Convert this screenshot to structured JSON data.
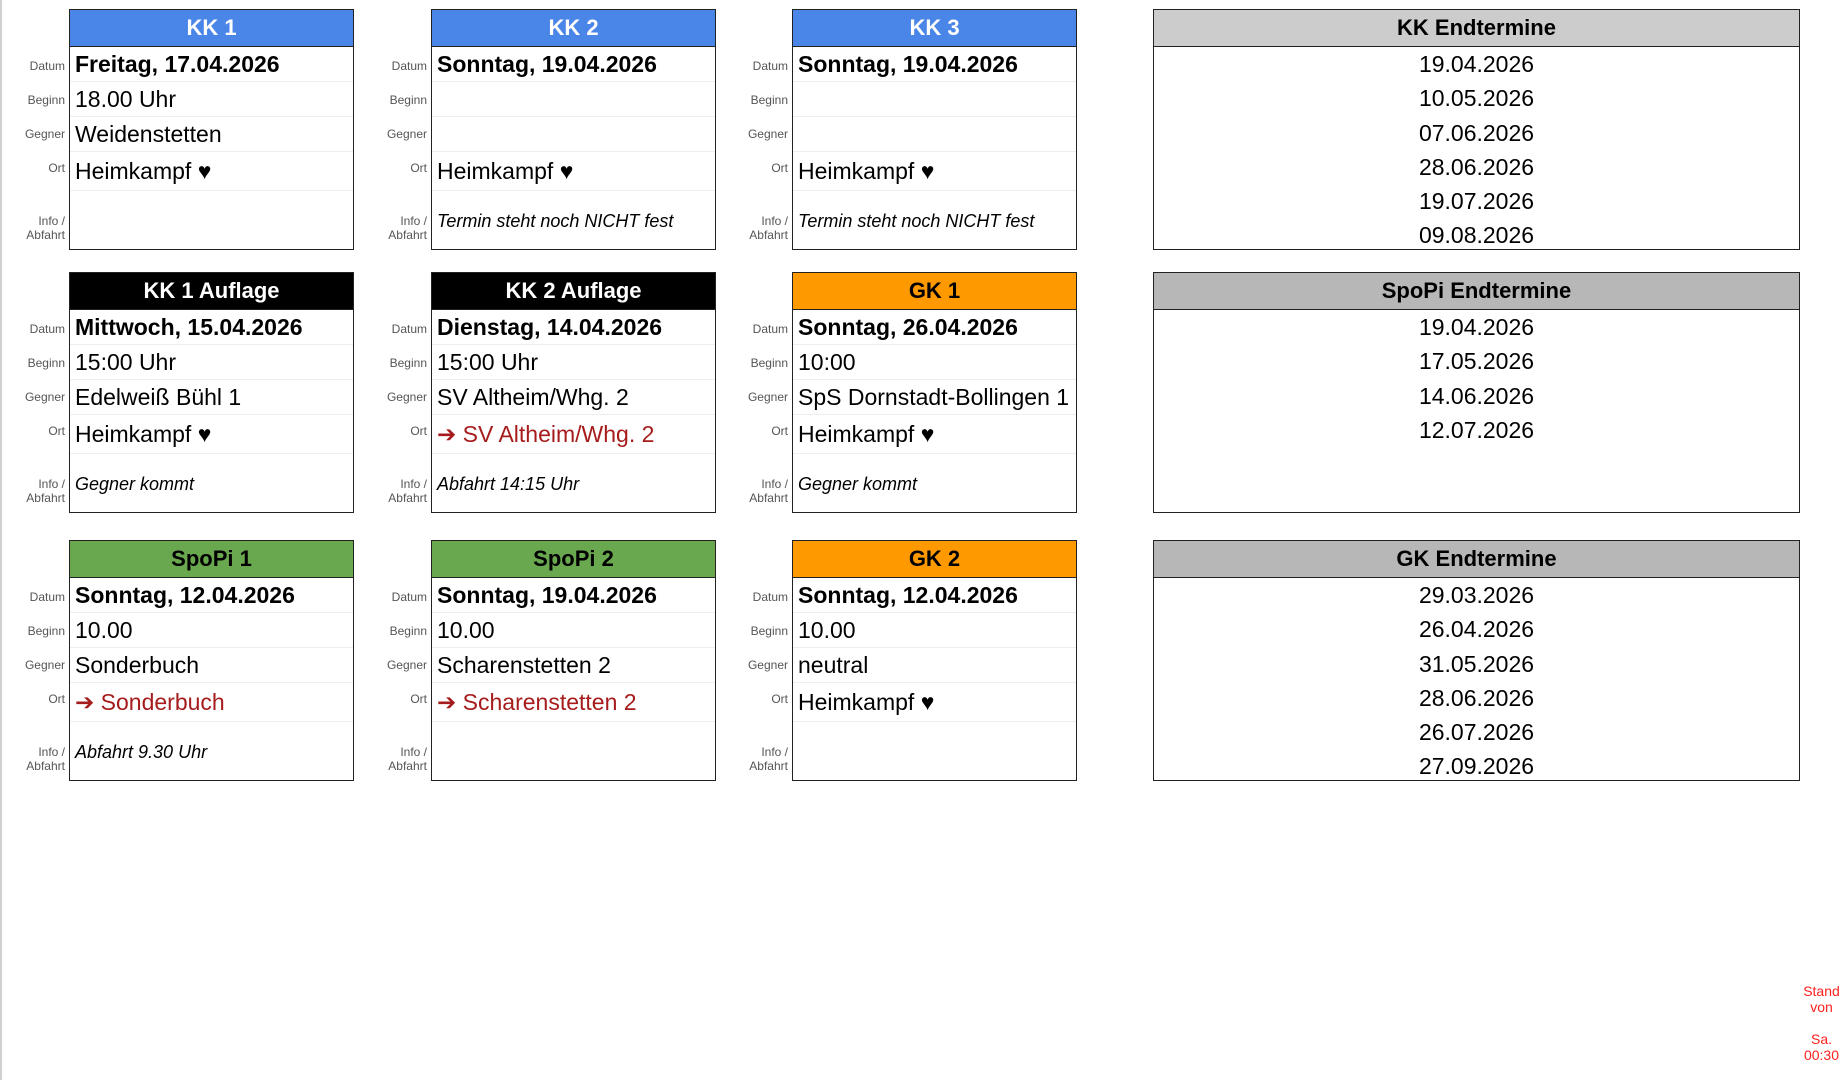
{
  "row_labels": {
    "datum": "Datum",
    "beginn": "Beginn",
    "gegner": "Gegner",
    "ort": "Ort",
    "info_line1": "Info /",
    "info_line2": "Abfahrt"
  },
  "colors": {
    "kk": "#4a86e8",
    "auflage": "#000000",
    "gk": "#ff9900",
    "spopi": "#6aa84f",
    "end_kk": "#cccccc",
    "end_other": "#b7b7b7",
    "away": "#a61c1c",
    "stand": "#ff2020"
  },
  "cards": [
    {
      "title": "KK 1",
      "color": "#4a86e8",
      "title_color": "#ffffff",
      "datum": "Freitag, 17.04.2026",
      "beginn": "18.00 Uhr",
      "gegner": "Weidenstetten",
      "ort": "Heimkampf ♥",
      "ort_away": false,
      "info": ""
    },
    {
      "title": "KK 2",
      "color": "#4a86e8",
      "title_color": "#ffffff",
      "datum": "Sonntag, 19.04.2026",
      "beginn": "",
      "gegner": "",
      "ort": "Heimkampf ♥",
      "ort_away": false,
      "info": "Termin steht noch NICHT fest"
    },
    {
      "title": "KK 3",
      "color": "#4a86e8",
      "title_color": "#ffffff",
      "datum": "Sonntag, 19.04.2026",
      "beginn": "",
      "gegner": "",
      "ort": "Heimkampf ♥",
      "ort_away": false,
      "info": "Termin steht noch NICHT fest"
    },
    {
      "title": "KK 1 Auflage",
      "color": "#000000",
      "title_color": "#ffffff",
      "datum": "Mittwoch, 15.04.2026",
      "beginn": "15:00 Uhr",
      "gegner": "Edelweiß Bühl 1",
      "ort": "Heimkampf ♥",
      "ort_away": false,
      "info": "Gegner kommt"
    },
    {
      "title": "KK 2 Auflage",
      "color": "#000000",
      "title_color": "#ffffff",
      "datum": "Dienstag, 14.04.2026",
      "beginn": "15:00 Uhr",
      "gegner": "SV Altheim/Whg. 2",
      "ort": "➔ SV Altheim/Whg. 2",
      "ort_away": true,
      "info": "Abfahrt 14:15 Uhr"
    },
    {
      "title": "GK 1",
      "color": "#ff9900",
      "title_color": "#000000",
      "datum": "Sonntag, 26.04.2026",
      "beginn": "10:00",
      "gegner": "SpS Dornstadt-Bollingen 1",
      "ort": "Heimkampf ♥",
      "ort_away": false,
      "info": "Gegner kommt"
    },
    {
      "title": "SpoPi 1",
      "color": "#6aa84f",
      "title_color": "#000000",
      "datum": "Sonntag, 12.04.2026",
      "beginn": "10.00",
      "gegner": "Sonderbuch",
      "ort": "➔ Sonderbuch",
      "ort_away": true,
      "info": "Abfahrt 9.30 Uhr"
    },
    {
      "title": "SpoPi 2",
      "color": "#6aa84f",
      "title_color": "#000000",
      "datum": "Sonntag, 19.04.2026",
      "beginn": "10.00",
      "gegner": "Scharenstetten 2",
      "ort": "➔ Scharenstetten 2",
      "ort_away": true,
      "info": ""
    },
    {
      "title": "GK 2",
      "color": "#ff9900",
      "title_color": "#000000",
      "datum": "Sonntag, 12.04.2026",
      "beginn": "10.00",
      "gegner": "neutral",
      "ort": "Heimkampf ♥",
      "ort_away": false,
      "info": ""
    }
  ],
  "end_dates": [
    {
      "title": "KK Endtermine",
      "color": "#cccccc",
      "dates": [
        "19.04.2026",
        "10.05.2026",
        "07.06.2026",
        "28.06.2026",
        "19.07.2026",
        "09.08.2026"
      ]
    },
    {
      "title": "SpoPi Endtermine",
      "color": "#b7b7b7",
      "dates": [
        "19.04.2026",
        "17.05.2026",
        "14.06.2026",
        "12.07.2026"
      ]
    },
    {
      "title": "GK Endtermine",
      "color": "#b7b7b7",
      "dates": [
        "29.03.2026",
        "26.04.2026",
        "31.05.2026",
        "28.06.2026",
        "26.07.2026",
        "27.09.2026"
      ]
    }
  ],
  "stand": {
    "line1": "Stand",
    "line2": "von",
    "line3": "Sa.",
    "line4": "00:30"
  }
}
